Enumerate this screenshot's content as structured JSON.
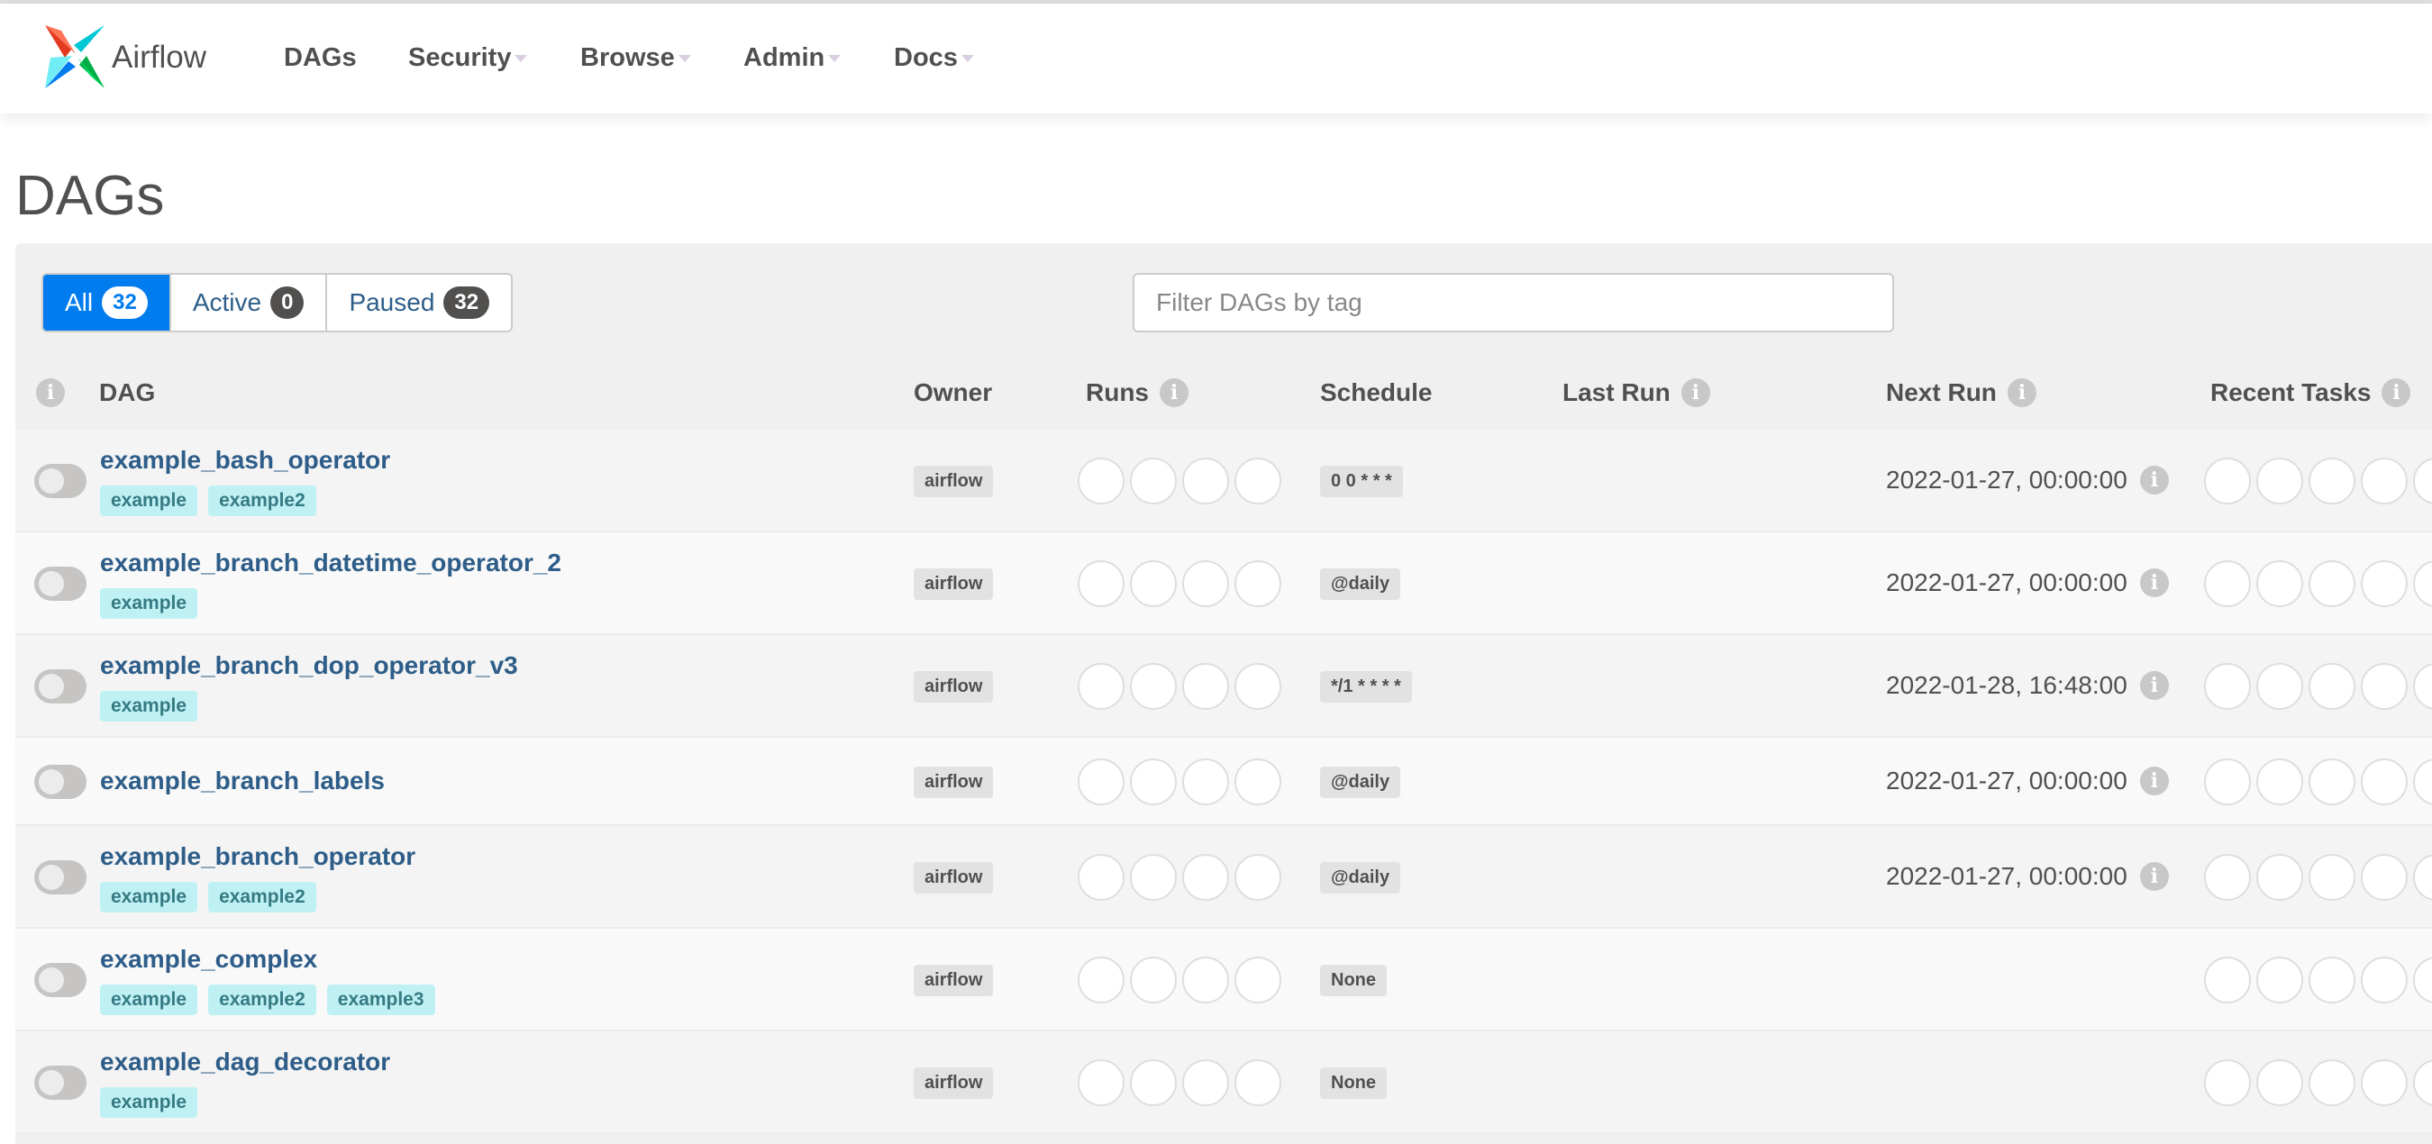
{
  "nav": {
    "brand": "Airflow",
    "items": [
      {
        "label": "DAGs",
        "dropdown": false
      },
      {
        "label": "Security",
        "dropdown": true
      },
      {
        "label": "Browse",
        "dropdown": true
      },
      {
        "label": "Admin",
        "dropdown": true
      },
      {
        "label": "Docs",
        "dropdown": true
      }
    ]
  },
  "page_title": "DAGs",
  "filters": [
    {
      "label": "All",
      "count": "32",
      "active": true
    },
    {
      "label": "Active",
      "count": "0",
      "active": false
    },
    {
      "label": "Paused",
      "count": "32",
      "active": false
    }
  ],
  "tag_filter": {
    "placeholder": "Filter DAGs by tag",
    "value": ""
  },
  "columns": {
    "dag": "DAG",
    "owner": "Owner",
    "runs": "Runs",
    "schedule": "Schedule",
    "last_run": "Last Run",
    "next_run": "Next Run",
    "recent_tasks": "Recent Tasks"
  },
  "colors": {
    "accent": "#017cee",
    "link": "#2d5d88",
    "tag_bg": "#bff1f4"
  },
  "dags": [
    {
      "name": "example_bash_operator",
      "tags": [
        "example",
        "example2"
      ],
      "owner": "airflow",
      "schedule": "0 0 * * *",
      "last_run": "",
      "next_run": "2022-01-27, 00:00:00",
      "paused": true
    },
    {
      "name": "example_branch_datetime_operator_2",
      "tags": [
        "example"
      ],
      "owner": "airflow",
      "schedule": "@daily",
      "last_run": "",
      "next_run": "2022-01-27, 00:00:00",
      "paused": true
    },
    {
      "name": "example_branch_dop_operator_v3",
      "tags": [
        "example"
      ],
      "owner": "airflow",
      "schedule": "*/1 * * * *",
      "last_run": "",
      "next_run": "2022-01-28, 16:48:00",
      "paused": true
    },
    {
      "name": "example_branch_labels",
      "tags": [],
      "owner": "airflow",
      "schedule": "@daily",
      "last_run": "",
      "next_run": "2022-01-27, 00:00:00",
      "paused": true
    },
    {
      "name": "example_branch_operator",
      "tags": [
        "example",
        "example2"
      ],
      "owner": "airflow",
      "schedule": "@daily",
      "last_run": "",
      "next_run": "2022-01-27, 00:00:00",
      "paused": true
    },
    {
      "name": "example_complex",
      "tags": [
        "example",
        "example2",
        "example3"
      ],
      "owner": "airflow",
      "schedule": "None",
      "last_run": "",
      "next_run": "",
      "paused": true
    },
    {
      "name": "example_dag_decorator",
      "tags": [
        "example"
      ],
      "owner": "airflow",
      "schedule": "None",
      "last_run": "",
      "next_run": "",
      "paused": true
    }
  ]
}
